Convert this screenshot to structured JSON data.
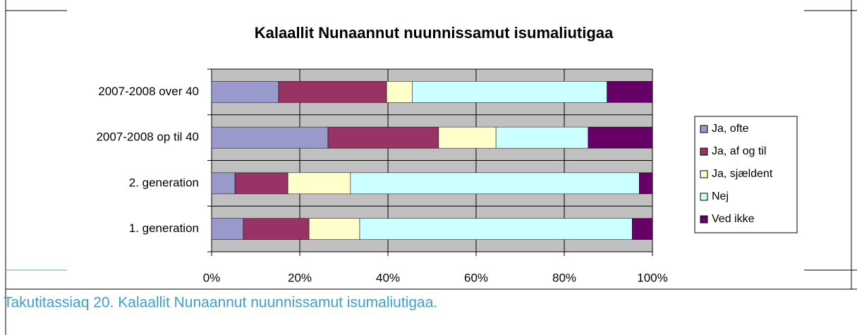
{
  "chart_data": {
    "type": "stacked-bar-horizontal",
    "title": "Kalaallit Nunaannut nuunnissamut isumaliutigaa",
    "categories": [
      "2007-2008 over 40",
      "2007-2008 op til 40",
      "2. generation",
      "1. generation"
    ],
    "series": [
      {
        "name": "Ja, ofte",
        "color": "#9999cc",
        "values": [
          15.2,
          26.4,
          5.3,
          7.2
        ]
      },
      {
        "name": "Ja, af og til",
        "color": "#993366",
        "values": [
          24.5,
          25.1,
          12.0,
          14.9
        ]
      },
      {
        "name": "Ja, sjældent",
        "color": "#ffffcc",
        "values": [
          5.8,
          13.0,
          14.2,
          11.5
        ]
      },
      {
        "name": "Nej",
        "color": "#ccffff",
        "values": [
          44.2,
          20.9,
          65.5,
          61.8
        ]
      },
      {
        "name": "Ved ikke",
        "color": "#660066",
        "values": [
          10.3,
          14.6,
          3.0,
          4.6
        ]
      }
    ],
    "xlim": [
      0,
      100
    ],
    "xticks": [
      {
        "value": 0,
        "label": "0%"
      },
      {
        "value": 20,
        "label": "20%"
      },
      {
        "value": 40,
        "label": "40%"
      },
      {
        "value": 60,
        "label": "60%"
      },
      {
        "value": 80,
        "label": "80%"
      },
      {
        "value": 100,
        "label": "100%"
      }
    ],
    "grid": true,
    "legend": "right"
  },
  "caption": "Takutitassiaq 20. Kalaallit Nunaannut nuunnissamut isumaliutigaa."
}
